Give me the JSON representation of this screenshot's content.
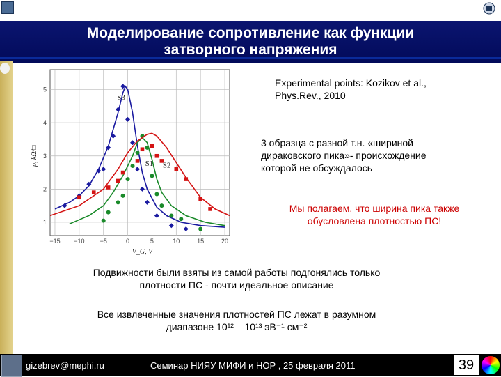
{
  "title": {
    "line1": "Моделирование сопротивление как функции",
    "line2": "затворного напряжения"
  },
  "reference": {
    "line1": "Experimental points:  Kozikov et al.,",
    "line2": "Phys.Rev., 2010"
  },
  "samples_note": {
    "line1": "3 образца с разной т.н. «шириной",
    "line2": "дираковского пика»- происхождение",
    "line3": "которой  не обсуждалось"
  },
  "hypothesis": {
    "line1": "Мы полагаем, что ширина пика также",
    "line2": "обусловлена плотностью ПС!"
  },
  "mobility_note": {
    "line1": "Подвижности были взяты из самой работы подгонялись только",
    "line2": "плотности ПС  - почти идеальное описание"
  },
  "density_note": {
    "line1": "Все извлеченные значения  плотностей ПС лежат в разумном",
    "line2": "диапазоне 10¹² – 10¹³ эВ⁻¹ см⁻²"
  },
  "footer": {
    "email": "gizebrev@mephi.ru",
    "seminar": "Семинар  НИЯУ МИФИ и НОР ,    25 февраля  2011",
    "page": "39"
  },
  "colors": {
    "banner": "#0b1570",
    "s1": "#1a8a2a",
    "s2": "#d41414",
    "s3": "#1a1aa0"
  },
  "chart_data": {
    "type": "scatter",
    "xlabel": "V_G, V",
    "ylabel": "ρ, kΩ/□",
    "xlim": [
      -16,
      21
    ],
    "ylim": [
      0.6,
      5.6
    ],
    "xticks": [
      "−15",
      "−10",
      "−5",
      "0",
      "5",
      "10",
      "15",
      "20"
    ],
    "yticks": [
      "1",
      "2",
      "3",
      "4",
      "5"
    ],
    "grid": true,
    "series": [
      {
        "name": "S3",
        "color": "#1a1aa0",
        "points": [
          [
            -13,
            1.5
          ],
          [
            -10,
            1.8
          ],
          [
            -8,
            2.15
          ],
          [
            -6,
            2.55
          ],
          [
            -5,
            2.6
          ],
          [
            -4,
            3.25
          ],
          [
            -3,
            3.6
          ],
          [
            -2,
            4.4
          ],
          [
            -1,
            5.1
          ],
          [
            0,
            4.1
          ],
          [
            1,
            3.4
          ],
          [
            2,
            2.6
          ],
          [
            3,
            2.0
          ],
          [
            4,
            1.6
          ],
          [
            6,
            1.2
          ],
          [
            9,
            0.9
          ],
          [
            12,
            0.8
          ]
        ],
        "curve": [
          [
            -15,
            1.4
          ],
          [
            -12,
            1.6
          ],
          [
            -10,
            1.8
          ],
          [
            -8,
            2.1
          ],
          [
            -6,
            2.6
          ],
          [
            -4,
            3.3
          ],
          [
            -2,
            4.3
          ],
          [
            -1,
            4.9
          ],
          [
            -0.5,
            5.1
          ],
          [
            0,
            5.0
          ],
          [
            1,
            4.3
          ],
          [
            2,
            3.3
          ],
          [
            3,
            2.5
          ],
          [
            4,
            2.0
          ],
          [
            6,
            1.45
          ],
          [
            8,
            1.2
          ],
          [
            11,
            1.0
          ],
          [
            15,
            0.9
          ],
          [
            20,
            0.85
          ]
        ]
      },
      {
        "name": "S1",
        "color": "#1a8a2a",
        "points": [
          [
            -5,
            1.05
          ],
          [
            -4,
            1.3
          ],
          [
            -2,
            1.6
          ],
          [
            -1,
            1.8
          ],
          [
            0,
            2.3
          ],
          [
            1,
            2.7
          ],
          [
            2,
            3.1
          ],
          [
            3,
            3.6
          ],
          [
            4,
            3.25
          ],
          [
            5,
            2.4
          ],
          [
            6,
            1.85
          ],
          [
            7,
            1.5
          ],
          [
            9,
            1.2
          ],
          [
            11,
            1.1
          ],
          [
            15,
            0.8
          ]
        ],
        "curve": [
          [
            -12,
            0.95
          ],
          [
            -8,
            1.2
          ],
          [
            -5,
            1.5
          ],
          [
            -3,
            1.9
          ],
          [
            -1,
            2.4
          ],
          [
            1,
            3.0
          ],
          [
            2,
            3.4
          ],
          [
            3,
            3.55
          ],
          [
            4,
            3.4
          ],
          [
            5,
            2.9
          ],
          [
            6,
            2.3
          ],
          [
            7,
            1.9
          ],
          [
            9,
            1.5
          ],
          [
            12,
            1.2
          ],
          [
            16,
            1.0
          ],
          [
            20,
            0.9
          ]
        ]
      },
      {
        "name": "S2",
        "color": "#d41414",
        "points": [
          [
            -10,
            1.75
          ],
          [
            -7,
            1.9
          ],
          [
            -4,
            2.05
          ],
          [
            -2,
            2.25
          ],
          [
            -1,
            2.5
          ],
          [
            2,
            2.85
          ],
          [
            3,
            3.2
          ],
          [
            5,
            3.3
          ],
          [
            6,
            3.0
          ],
          [
            7,
            2.85
          ],
          [
            10,
            2.6
          ],
          [
            12,
            2.3
          ],
          [
            15,
            1.7
          ],
          [
            17,
            1.4
          ]
        ],
        "curve": [
          [
            -16,
            1.2
          ],
          [
            -10,
            1.5
          ],
          [
            -5,
            2.0
          ],
          [
            -2,
            2.6
          ],
          [
            0,
            3.1
          ],
          [
            2,
            3.45
          ],
          [
            4,
            3.65
          ],
          [
            5,
            3.68
          ],
          [
            6,
            3.6
          ],
          [
            8,
            3.25
          ],
          [
            10,
            2.8
          ],
          [
            12,
            2.35
          ],
          [
            15,
            1.75
          ],
          [
            18,
            1.4
          ],
          [
            21,
            1.2
          ]
        ]
      }
    ]
  }
}
